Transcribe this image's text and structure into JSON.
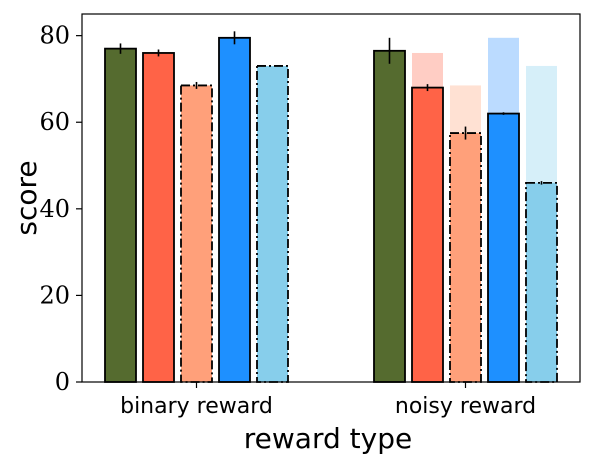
{
  "chart_data": {
    "type": "bar",
    "title": "",
    "xlabel": "reward type",
    "ylabel": "score",
    "ylim": [
      0,
      85
    ],
    "yticks": [
      "0",
      "20",
      "40",
      "60",
      "80"
    ],
    "categories": [
      "binary reward",
      "noisy reward"
    ],
    "grid": false,
    "legend": "none",
    "series": [
      {
        "color": "#556b2f",
        "dash": "solid",
        "values": [
          77.0,
          76.5
        ],
        "errors": [
          1.2,
          3.0
        ],
        "ghost_values": [
          null,
          null
        ],
        "ghost_color": ""
      },
      {
        "color": "#ff6347",
        "dash": "solid",
        "values": [
          76.0,
          68.0
        ],
        "errors": [
          0.8,
          0.8
        ],
        "ghost_values": [
          null,
          76.0
        ],
        "ghost_color": "#ffcdc4"
      },
      {
        "color": "#ffa07a",
        "dash": "dashdot",
        "values": [
          68.5,
          57.5
        ],
        "errors": [
          0.8,
          1.5
        ],
        "ghost_values": [
          null,
          68.5
        ],
        "ghost_color": "#ffe1d3"
      },
      {
        "color": "#1e90ff",
        "dash": "solid",
        "values": [
          79.5,
          62.0
        ],
        "errors": [
          1.5,
          0.3
        ],
        "ghost_values": [
          null,
          79.5
        ],
        "ghost_color": "#bbdbff"
      },
      {
        "color": "#87ceeb",
        "dash": "dashdot",
        "values": [
          73.0,
          46.0
        ],
        "errors": [
          0.0,
          0.4
        ],
        "ghost_values": [
          null,
          73.0
        ],
        "ghost_color": "#d6eff9"
      }
    ]
  }
}
